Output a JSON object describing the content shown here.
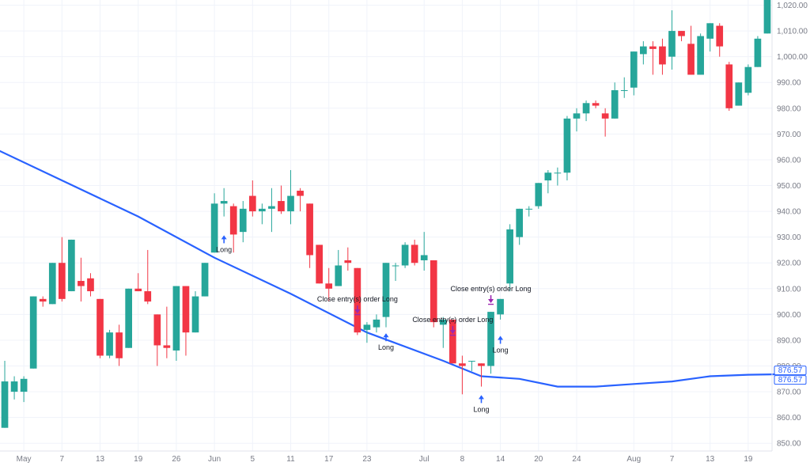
{
  "chart_data": {
    "type": "candlestick",
    "y_axis": {
      "ylim": [
        847,
        1022
      ],
      "ticks": [
        850,
        860,
        870,
        880,
        890,
        900,
        910,
        920,
        930,
        940,
        950,
        960,
        970,
        980,
        990,
        1000,
        1010,
        1020
      ],
      "tick_labels": [
        "850.00",
        "860.00",
        "870.00",
        "880.00",
        "890.00",
        "900.00",
        "910.00",
        "920.00",
        "930.00",
        "940.00",
        "950.00",
        "960.00",
        "970.00",
        "980.00",
        "990.00",
        "1,000.00",
        "1,010.00",
        "1,020.00"
      ],
      "position": "right"
    },
    "x_axis": {
      "ticks": [
        {
          "index": 2,
          "label": "May"
        },
        {
          "index": 6,
          "label": "7"
        },
        {
          "index": 10,
          "label": "13"
        },
        {
          "index": 14,
          "label": "19"
        },
        {
          "index": 18,
          "label": "26"
        },
        {
          "index": 22,
          "label": "Jun"
        },
        {
          "index": 26,
          "label": "5"
        },
        {
          "index": 30,
          "label": "11"
        },
        {
          "index": 34,
          "label": "17"
        },
        {
          "index": 38,
          "label": "23"
        },
        {
          "index": 44,
          "label": "Jul"
        },
        {
          "index": 48,
          "label": "8"
        },
        {
          "index": 52,
          "label": "14"
        },
        {
          "index": 56,
          "label": "20"
        },
        {
          "index": 60,
          "label": "24"
        },
        {
          "index": 66,
          "label": "Aug"
        },
        {
          "index": 70,
          "label": "7"
        },
        {
          "index": 74,
          "label": "13"
        },
        {
          "index": 78,
          "label": "19"
        }
      ]
    },
    "candles": [
      {
        "o": 856,
        "h": 882,
        "l": 856,
        "c": 874
      },
      {
        "o": 870,
        "h": 876,
        "l": 867,
        "c": 874
      },
      {
        "o": 870,
        "h": 876,
        "l": 866,
        "c": 875
      },
      {
        "o": 879,
        "h": 907,
        "l": 879,
        "c": 907
      },
      {
        "o": 906,
        "h": 907,
        "l": 903,
        "c": 905
      },
      {
        "o": 904,
        "h": 920,
        "l": 904,
        "c": 920
      },
      {
        "o": 920,
        "h": 930,
        "l": 905,
        "c": 906
      },
      {
        "o": 909,
        "h": 929,
        "l": 909,
        "c": 929
      },
      {
        "o": 913,
        "h": 922,
        "l": 905,
        "c": 911
      },
      {
        "o": 914,
        "h": 916,
        "l": 907,
        "c": 909
      },
      {
        "o": 906,
        "h": 906,
        "l": 883,
        "c": 884
      },
      {
        "o": 884,
        "h": 894,
        "l": 883,
        "c": 893
      },
      {
        "o": 893,
        "h": 896,
        "l": 880,
        "c": 883
      },
      {
        "o": 887,
        "h": 910,
        "l": 887,
        "c": 910
      },
      {
        "o": 910,
        "h": 916,
        "l": 909,
        "c": 909
      },
      {
        "o": 909,
        "h": 925,
        "l": 904,
        "c": 905
      },
      {
        "o": 900,
        "h": 900,
        "l": 880,
        "c": 888
      },
      {
        "o": 888,
        "h": 903,
        "l": 883,
        "c": 887
      },
      {
        "o": 886,
        "h": 911,
        "l": 882,
        "c": 911
      },
      {
        "o": 911,
        "h": 911,
        "l": 884,
        "c": 893
      },
      {
        "o": 893,
        "h": 909,
        "l": 893,
        "c": 907
      },
      {
        "o": 907,
        "h": 920,
        "l": 907,
        "c": 920
      },
      {
        "o": 924,
        "h": 947,
        "l": 924,
        "c": 943
      },
      {
        "o": 943,
        "h": 949,
        "l": 938,
        "c": 944
      },
      {
        "o": 942,
        "h": 943,
        "l": 924,
        "c": 931
      },
      {
        "o": 932,
        "h": 944,
        "l": 928,
        "c": 941
      },
      {
        "o": 946,
        "h": 952,
        "l": 938,
        "c": 940
      },
      {
        "o": 940,
        "h": 943,
        "l": 935,
        "c": 941
      },
      {
        "o": 941,
        "h": 949,
        "l": 932,
        "c": 942
      },
      {
        "o": 944,
        "h": 950,
        "l": 939,
        "c": 940
      },
      {
        "o": 940,
        "h": 956,
        "l": 935,
        "c": 946
      },
      {
        "o": 948,
        "h": 949,
        "l": 940,
        "c": 946
      },
      {
        "o": 943,
        "h": 943,
        "l": 918,
        "c": 923
      },
      {
        "o": 927,
        "h": 927,
        "l": 912,
        "c": 912
      },
      {
        "o": 912,
        "h": 918,
        "l": 905,
        "c": 910
      },
      {
        "o": 911,
        "h": 925,
        "l": 911,
        "c": 919
      },
      {
        "o": 921,
        "h": 926,
        "l": 917,
        "c": 920
      },
      {
        "o": 918,
        "h": 918,
        "l": 892,
        "c": 893
      },
      {
        "o": 894,
        "h": 897,
        "l": 889,
        "c": 896
      },
      {
        "o": 895,
        "h": 900,
        "l": 893,
        "c": 898
      },
      {
        "o": 899,
        "h": 920,
        "l": 895,
        "c": 920
      },
      {
        "o": 919,
        "h": 920,
        "l": 913,
        "c": 919
      },
      {
        "o": 919,
        "h": 928,
        "l": 918,
        "c": 927
      },
      {
        "o": 927,
        "h": 929,
        "l": 919,
        "c": 920
      },
      {
        "o": 921,
        "h": 932,
        "l": 917,
        "c": 923
      },
      {
        "o": 921,
        "h": 921,
        "l": 895,
        "c": 897
      },
      {
        "o": 896,
        "h": 899,
        "l": 887,
        "c": 898
      },
      {
        "o": 898,
        "h": 898,
        "l": 881,
        "c": 881
      },
      {
        "o": 881,
        "h": 884,
        "l": 869,
        "c": 880
      },
      {
        "o": 882,
        "h": 882,
        "l": 878,
        "c": 882
      },
      {
        "o": 881,
        "h": 881,
        "l": 872,
        "c": 880
      },
      {
        "o": 880,
        "h": 901,
        "l": 877,
        "c": 901
      },
      {
        "o": 900,
        "h": 906,
        "l": 898,
        "c": 906
      },
      {
        "o": 912,
        "h": 935,
        "l": 909,
        "c": 933
      },
      {
        "o": 930,
        "h": 941,
        "l": 927,
        "c": 941
      },
      {
        "o": 941,
        "h": 942,
        "l": 938,
        "c": 941
      },
      {
        "o": 942,
        "h": 951,
        "l": 941,
        "c": 951
      },
      {
        "o": 952,
        "h": 956,
        "l": 947,
        "c": 955
      },
      {
        "o": 955,
        "h": 957,
        "l": 950,
        "c": 955
      },
      {
        "o": 955,
        "h": 977,
        "l": 952,
        "c": 976
      },
      {
        "o": 976,
        "h": 980,
        "l": 971,
        "c": 978
      },
      {
        "o": 978,
        "h": 983,
        "l": 975,
        "c": 982
      },
      {
        "o": 982,
        "h": 983,
        "l": 980,
        "c": 981
      },
      {
        "o": 978,
        "h": 980,
        "l": 969,
        "c": 976
      },
      {
        "o": 976,
        "h": 990,
        "l": 976,
        "c": 987
      },
      {
        "o": 987,
        "h": 992,
        "l": 984,
        "c": 987
      },
      {
        "o": 988,
        "h": 1002,
        "l": 985,
        "c": 1002
      },
      {
        "o": 1001,
        "h": 1006,
        "l": 997,
        "c": 1004
      },
      {
        "o": 1004,
        "h": 1006,
        "l": 993,
        "c": 1003
      },
      {
        "o": 1004,
        "h": 1007,
        "l": 993,
        "c": 997
      },
      {
        "o": 1000,
        "h": 1018,
        "l": 995,
        "c": 1010
      },
      {
        "o": 1010,
        "h": 1010,
        "l": 1006,
        "c": 1008
      },
      {
        "o": 1005,
        "h": 1012,
        "l": 993,
        "c": 993
      },
      {
        "o": 993,
        "h": 1009,
        "l": 993,
        "c": 1008
      },
      {
        "o": 1007,
        "h": 1013,
        "l": 1002,
        "c": 1013
      },
      {
        "o": 1012,
        "h": 1013,
        "l": 1000,
        "c": 1004
      },
      {
        "o": 997,
        "h": 998,
        "l": 979,
        "c": 980
      },
      {
        "o": 981,
        "h": 990,
        "l": 981,
        "c": 990
      },
      {
        "o": 986,
        "h": 997,
        "l": 985,
        "c": 996
      },
      {
        "o": 996,
        "h": 1008,
        "l": 996,
        "c": 1007
      },
      {
        "o": 1009,
        "h": 1022,
        "l": 1009,
        "c": 1022
      }
    ],
    "moving_average": {
      "color": "#2962ff",
      "x": [
        -2,
        6,
        14,
        22,
        30,
        38,
        46,
        50,
        54,
        58,
        62,
        66,
        70,
        74,
        78,
        82
      ],
      "values": [
        966,
        952,
        938,
        922,
        908,
        893,
        882,
        876,
        875,
        872,
        872,
        873,
        874,
        876,
        876.6,
        876.8
      ]
    },
    "price_labels": [
      "876.57",
      "876.57"
    ],
    "annotations": [
      {
        "text": "Long",
        "index": 23,
        "price": 927,
        "kind": "long"
      },
      {
        "text": "Close entry(s) order Long",
        "index": 37,
        "price": 905,
        "kind": "close"
      },
      {
        "text": "Long",
        "index": 40,
        "price": 889,
        "kind": "long"
      },
      {
        "text": "Close entry(s) order Long",
        "index": 47,
        "price": 897,
        "kind": "close"
      },
      {
        "text": "Long",
        "index": 50,
        "price": 865,
        "kind": "long"
      },
      {
        "text": "Close entry(s) order Long",
        "index": 51,
        "price": 909,
        "kind": "close"
      },
      {
        "text": "Long",
        "index": 52,
        "price": 888,
        "kind": "long"
      }
    ],
    "colors": {
      "up": "#26a69a",
      "down": "#f23645",
      "signal": "#2962ff",
      "exit": "#9c27b0"
    }
  }
}
